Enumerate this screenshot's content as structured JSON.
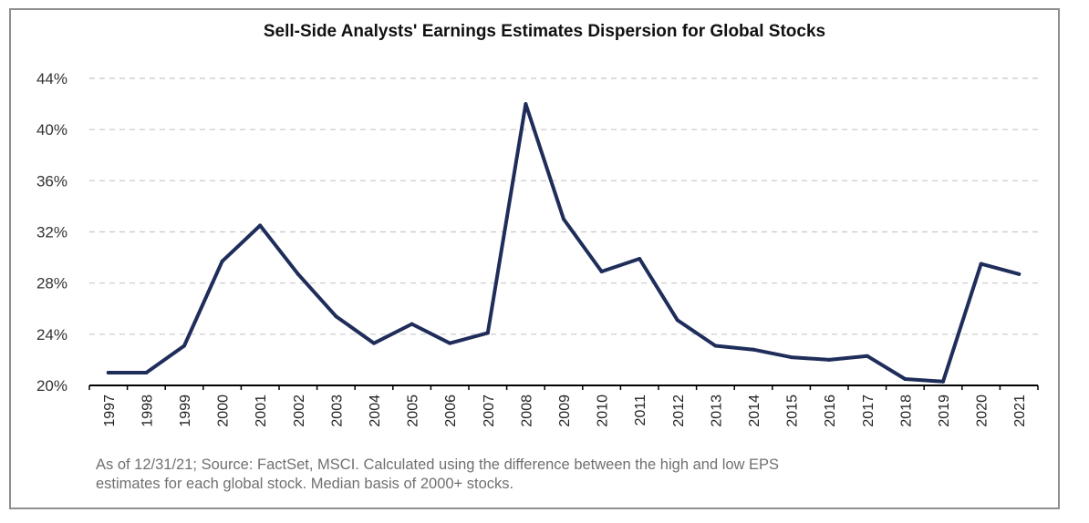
{
  "chart_data": {
    "type": "line",
    "title": "Sell-Side Analysts' Earnings Estimates Dispersion for Global Stocks",
    "xlabel": "",
    "ylabel": "",
    "categories": [
      "1997",
      "1998",
      "1999",
      "2000",
      "2001",
      "2002",
      "2003",
      "2004",
      "2005",
      "2006",
      "2007",
      "2008",
      "2009",
      "2010",
      "2011",
      "2012",
      "2013",
      "2014",
      "2015",
      "2016",
      "2017",
      "2018",
      "2019",
      "2020",
      "2021"
    ],
    "series": [
      {
        "values": [
          21.0,
          21.0,
          23.1,
          29.7,
          32.5,
          28.7,
          25.4,
          23.3,
          24.8,
          23.3,
          24.1,
          42.0,
          33.0,
          28.9,
          29.9,
          25.1,
          23.1,
          22.8,
          22.2,
          22.0,
          22.3,
          20.5,
          20.3,
          29.5,
          28.7
        ],
        "color": "#1f2d5a"
      }
    ],
    "ylim": [
      20,
      44
    ],
    "yticks": [
      20,
      24,
      28,
      32,
      36,
      40,
      44
    ],
    "ytick_labels": [
      "20%",
      "24%",
      "28%",
      "32%",
      "36%",
      "40%",
      "44%"
    ],
    "grid": true,
    "legend": "none",
    "colors": {
      "line": "#1f2d5a",
      "grid": "#c8c8c8",
      "axis": "#000000"
    }
  },
  "footnote": {
    "line1": "As of 12/31/21; Source: FactSet, MSCI. Calculated using the difference between the high and low EPS",
    "line2": "estimates for each global stock. Median basis of 2000+ stocks."
  }
}
